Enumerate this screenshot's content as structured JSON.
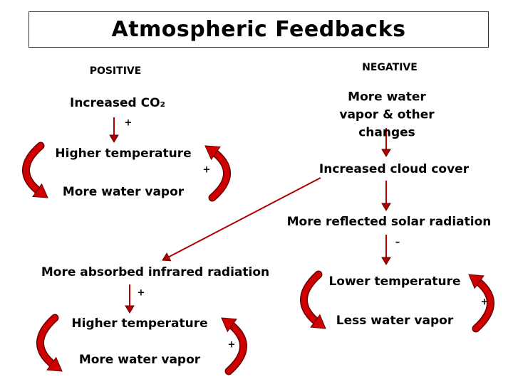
{
  "title": "Atmospheric Feedbacks",
  "positive": {
    "heading": "POSITIVE",
    "start": "Increased CO₂",
    "signs": [
      "+",
      "+"
    ],
    "loop": [
      "Higher temperature",
      "More water vapor"
    ]
  },
  "negative": {
    "heading": "NEGATIVE",
    "start": "More water vapor & other changes",
    "steps": [
      "Increased cloud cover",
      "More reflected solar radiation"
    ],
    "signs": [
      "–",
      "+"
    ],
    "loop": [
      "Lower temperature",
      "Less water vapor"
    ]
  },
  "result": {
    "start": "More absorbed infrared radiation",
    "signs": [
      "+",
      "+"
    ],
    "loop": [
      "Higher temperature",
      "More water vapor"
    ]
  }
}
